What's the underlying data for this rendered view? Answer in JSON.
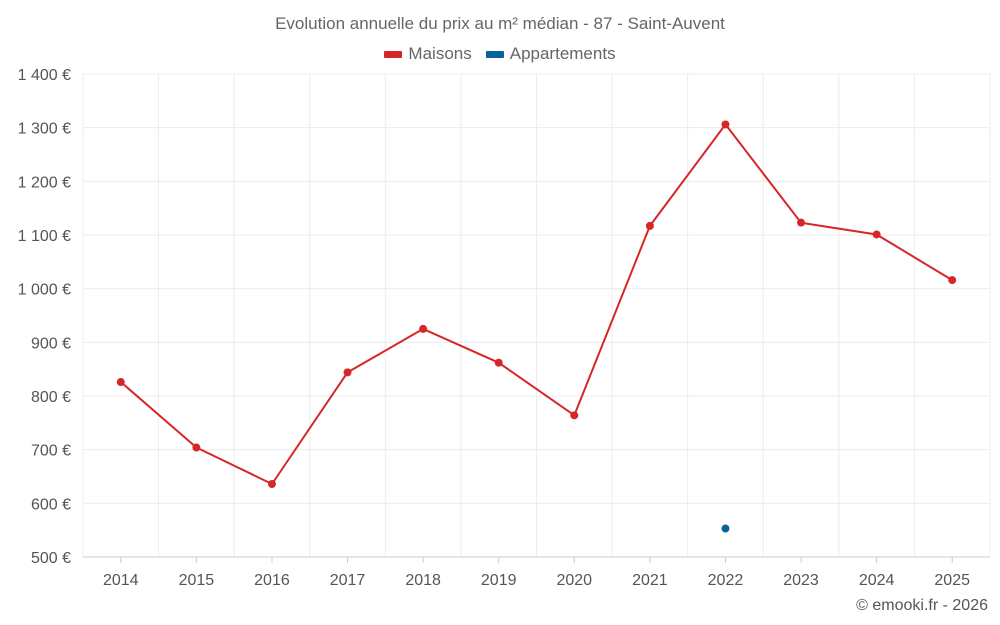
{
  "chart_data": {
    "type": "line",
    "title": "Evolution annuelle du prix au m² médian - 87 - Saint-Auvent",
    "categories": [
      "2014",
      "2015",
      "2016",
      "2017",
      "2018",
      "2019",
      "2020",
      "2021",
      "2022",
      "2023",
      "2024",
      "2025"
    ],
    "series": [
      {
        "name": "Maisons",
        "color": "#d62728",
        "values": [
          826,
          704,
          636,
          844,
          925,
          862,
          764,
          1117,
          1306,
          1123,
          1101,
          1016
        ]
      },
      {
        "name": "Appartements",
        "color": "#08629b",
        "values": [
          null,
          null,
          null,
          null,
          null,
          null,
          null,
          null,
          553,
          null,
          null,
          null
        ]
      }
    ],
    "y_ticks": [
      "500 €",
      "600 €",
      "700 €",
      "800 €",
      "900 €",
      "1 000 €",
      "1 100 €",
      "1 200 €",
      "1 300 €",
      "1 400 €"
    ],
    "ylim": [
      500,
      1400
    ],
    "ylabel": "",
    "xlabel": "",
    "grid": true,
    "legend_position": "top-center"
  },
  "credit": "© emooki.fr - 2026"
}
